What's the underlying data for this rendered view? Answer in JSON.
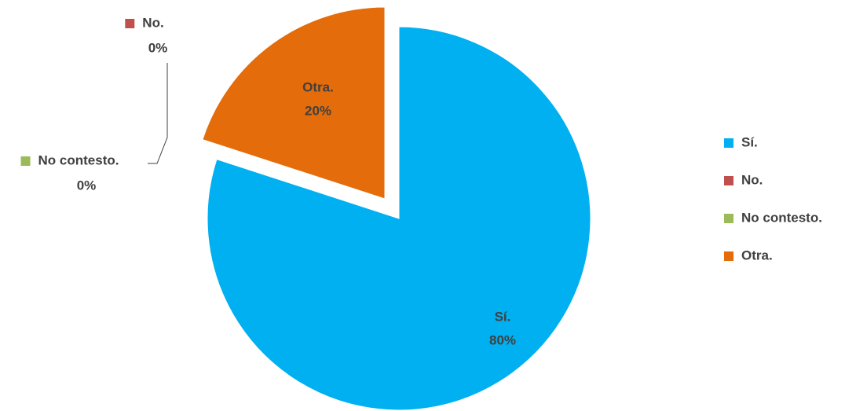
{
  "chart_data": {
    "type": "pie",
    "categories": [
      "Sí.",
      "No.",
      "No contesto.",
      "Otra."
    ],
    "values": [
      80,
      0,
      0,
      20
    ],
    "value_labels": [
      "80%",
      "0%",
      "0%",
      "20%"
    ],
    "colors": [
      "#00b0f0",
      "#c0504d",
      "#9bbb59",
      "#e46c0a"
    ],
    "legend": "right"
  }
}
